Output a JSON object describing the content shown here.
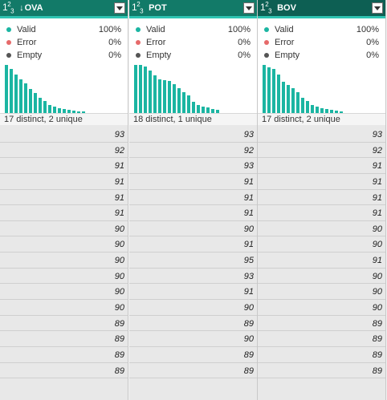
{
  "header_color": "#127a68",
  "accent_color": "#1bb5a2",
  "columns": [
    {
      "title": "OVA",
      "type_icon": "number-type-icon",
      "sorted": true,
      "sort_glyph": "↓",
      "header_bg": "#127a68",
      "stats": [
        {
          "label": "Valid",
          "value": "100%",
          "color": "#1bb5a2"
        },
        {
          "label": "Error",
          "value": "0%",
          "color": "#e66a6a"
        },
        {
          "label": "Empty",
          "value": "0%",
          "color": "#555555"
        }
      ],
      "histogram": [
        62,
        57,
        50,
        43,
        38,
        31,
        26,
        20,
        15,
        10,
        8,
        6,
        5,
        4,
        3,
        2,
        2
      ],
      "summary": "17 distinct, 2 unique",
      "values": [
        93,
        92,
        91,
        91,
        91,
        91,
        90,
        90,
        90,
        90,
        90,
        90,
        89,
        89,
        89,
        89
      ]
    },
    {
      "title": "POT",
      "type_icon": "number-type-icon",
      "sorted": false,
      "sort_glyph": "",
      "header_bg": "#127a68",
      "stats": [
        {
          "label": "Valid",
          "value": "100%",
          "color": "#1bb5a2"
        },
        {
          "label": "Error",
          "value": "0%",
          "color": "#e66a6a"
        },
        {
          "label": "Empty",
          "value": "0%",
          "color": "#555555"
        }
      ],
      "histogram": [
        62,
        62,
        60,
        55,
        48,
        43,
        42,
        41,
        37,
        32,
        27,
        23,
        14,
        10,
        8,
        7,
        5,
        4
      ],
      "summary": "18 distinct, 1 unique",
      "values": [
        93,
        92,
        93,
        91,
        91,
        91,
        90,
        91,
        95,
        93,
        91,
        90,
        89,
        90,
        89,
        89
      ]
    },
    {
      "title": "BOV",
      "type_icon": "number-type-icon",
      "sorted": false,
      "sort_glyph": "",
      "header_bg": "#0d5f53",
      "stats": [
        {
          "label": "Valid",
          "value": "100%",
          "color": "#1bb5a2"
        },
        {
          "label": "Error",
          "value": "0%",
          "color": "#e66a6a"
        },
        {
          "label": "Empty",
          "value": "0%",
          "color": "#555555"
        }
      ],
      "histogram": [
        62,
        59,
        57,
        50,
        40,
        36,
        32,
        27,
        20,
        15,
        10,
        8,
        6,
        5,
        4,
        3,
        2
      ],
      "summary": "17 distinct, 2 unique",
      "values": [
        93,
        92,
        91,
        91,
        91,
        91,
        90,
        90,
        91,
        90,
        90,
        90,
        89,
        89,
        89,
        89
      ]
    }
  ]
}
